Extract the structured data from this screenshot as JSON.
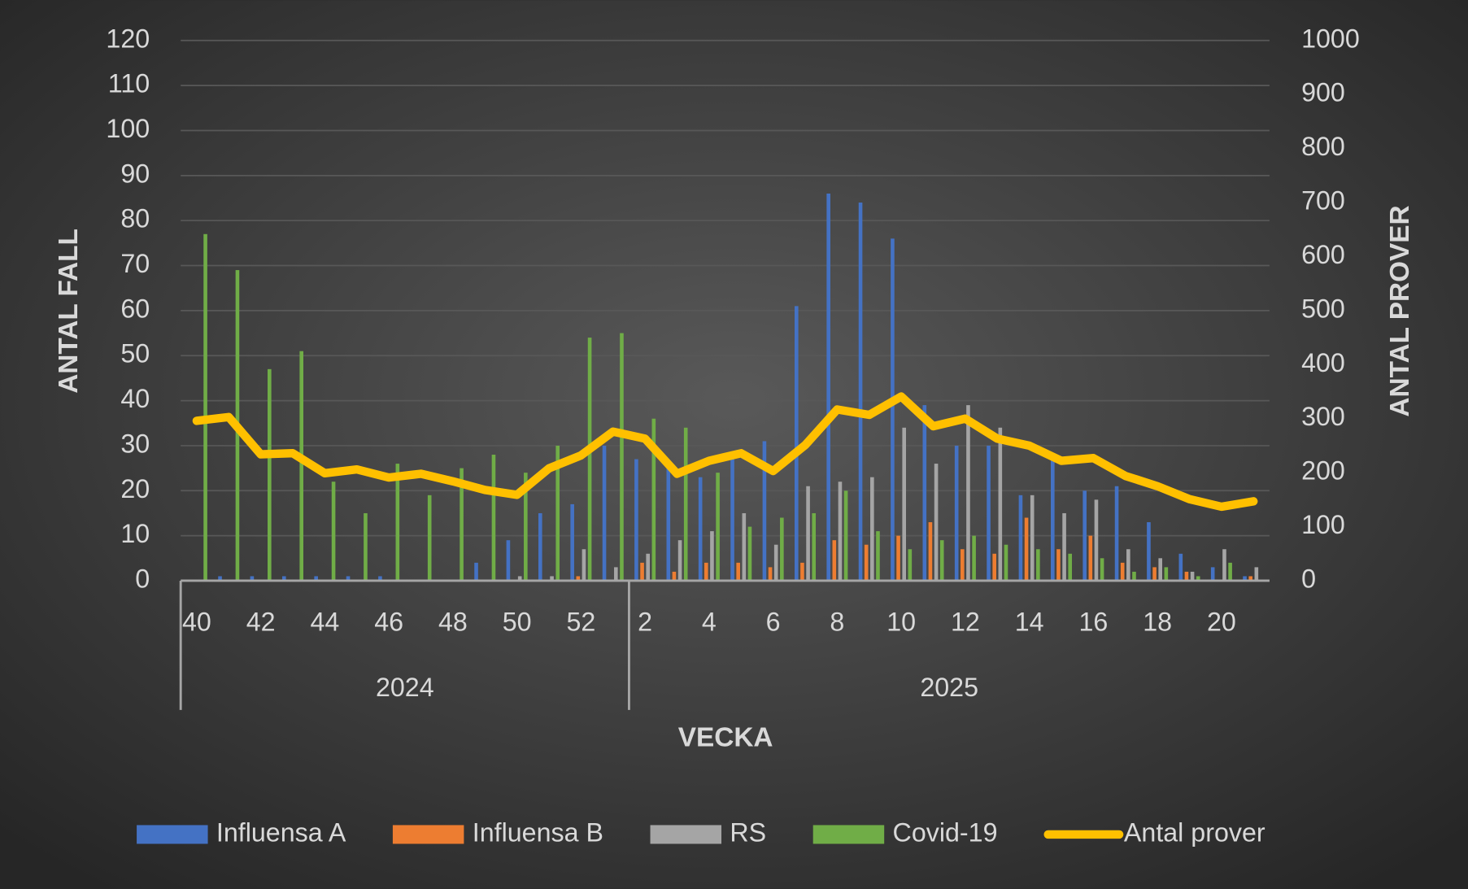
{
  "chart_data": {
    "type": "bar",
    "x_label": "VECKA",
    "y_label": "ANTAL FALL",
    "y2_label": "ANTAL PROVER",
    "categories": [
      "40",
      null,
      "42",
      null,
      "44",
      null,
      "46",
      null,
      "48",
      null,
      "50",
      null,
      "52",
      null,
      "2",
      null,
      "4",
      null,
      "6",
      null,
      "8",
      null,
      "10",
      null,
      "12",
      null,
      "14",
      null,
      "16",
      null,
      "18",
      null,
      "20",
      null
    ],
    "groups": [
      {
        "name": "2024",
        "start": 0,
        "end": 13
      },
      {
        "name": "2025",
        "start": 14,
        "end": 33
      }
    ],
    "ylim": [
      0,
      120
    ],
    "yticks": [
      0,
      10,
      20,
      30,
      40,
      50,
      60,
      70,
      80,
      90,
      100,
      110,
      120
    ],
    "y2lim": [
      0,
      1000
    ],
    "y2ticks": [
      0,
      100,
      200,
      300,
      400,
      500,
      600,
      700,
      800,
      900,
      1000
    ],
    "grid": true,
    "legend": "bottom",
    "series": [
      {
        "name": "Influensa A",
        "type": "bar",
        "color": "#4472c4",
        "values": [
          0,
          1,
          1,
          1,
          1,
          1,
          1,
          0,
          0,
          4,
          9,
          15,
          17,
          30,
          27,
          25,
          23,
          27,
          31,
          61,
          86,
          84,
          76,
          39,
          30,
          30,
          19,
          27,
          20,
          21,
          13,
          6,
          3,
          1
        ]
      },
      {
        "name": "Influensa B",
        "type": "bar",
        "color": "#ed7d31",
        "values": [
          0,
          0,
          0,
          0,
          0,
          0,
          0,
          0,
          0,
          0,
          0,
          0,
          1,
          0,
          4,
          2,
          4,
          4,
          3,
          4,
          9,
          8,
          10,
          13,
          7,
          6,
          14,
          7,
          10,
          4,
          3,
          2,
          0,
          1
        ]
      },
      {
        "name": "RS",
        "type": "bar",
        "color": "#a5a5a5",
        "values": [
          0,
          0,
          0,
          0,
          0,
          0,
          0,
          0,
          0,
          0,
          1,
          1,
          7,
          3,
          6,
          9,
          11,
          15,
          8,
          21,
          22,
          23,
          34,
          26,
          39,
          34,
          19,
          15,
          18,
          7,
          5,
          2,
          7,
          3
        ]
      },
      {
        "name": "Covid-19",
        "type": "bar",
        "color": "#70ad47",
        "values": [
          77,
          69,
          47,
          51,
          22,
          15,
          26,
          19,
          25,
          28,
          24,
          30,
          54,
          55,
          36,
          34,
          24,
          12,
          14,
          15,
          20,
          11,
          7,
          9,
          10,
          8,
          7,
          6,
          5,
          2,
          3,
          1,
          4,
          0
        ]
      },
      {
        "name": "Antal prover",
        "type": "line",
        "axis": "y2",
        "color": "#ffc000",
        "values": [
          296,
          303,
          234,
          236,
          199,
          206,
          191,
          198,
          184,
          168,
          159,
          208,
          232,
          276,
          263,
          198,
          222,
          236,
          203,
          251,
          317,
          307,
          341,
          286,
          300,
          263,
          250,
          222,
          227,
          194,
          175,
          151,
          137,
          147
        ]
      }
    ]
  }
}
